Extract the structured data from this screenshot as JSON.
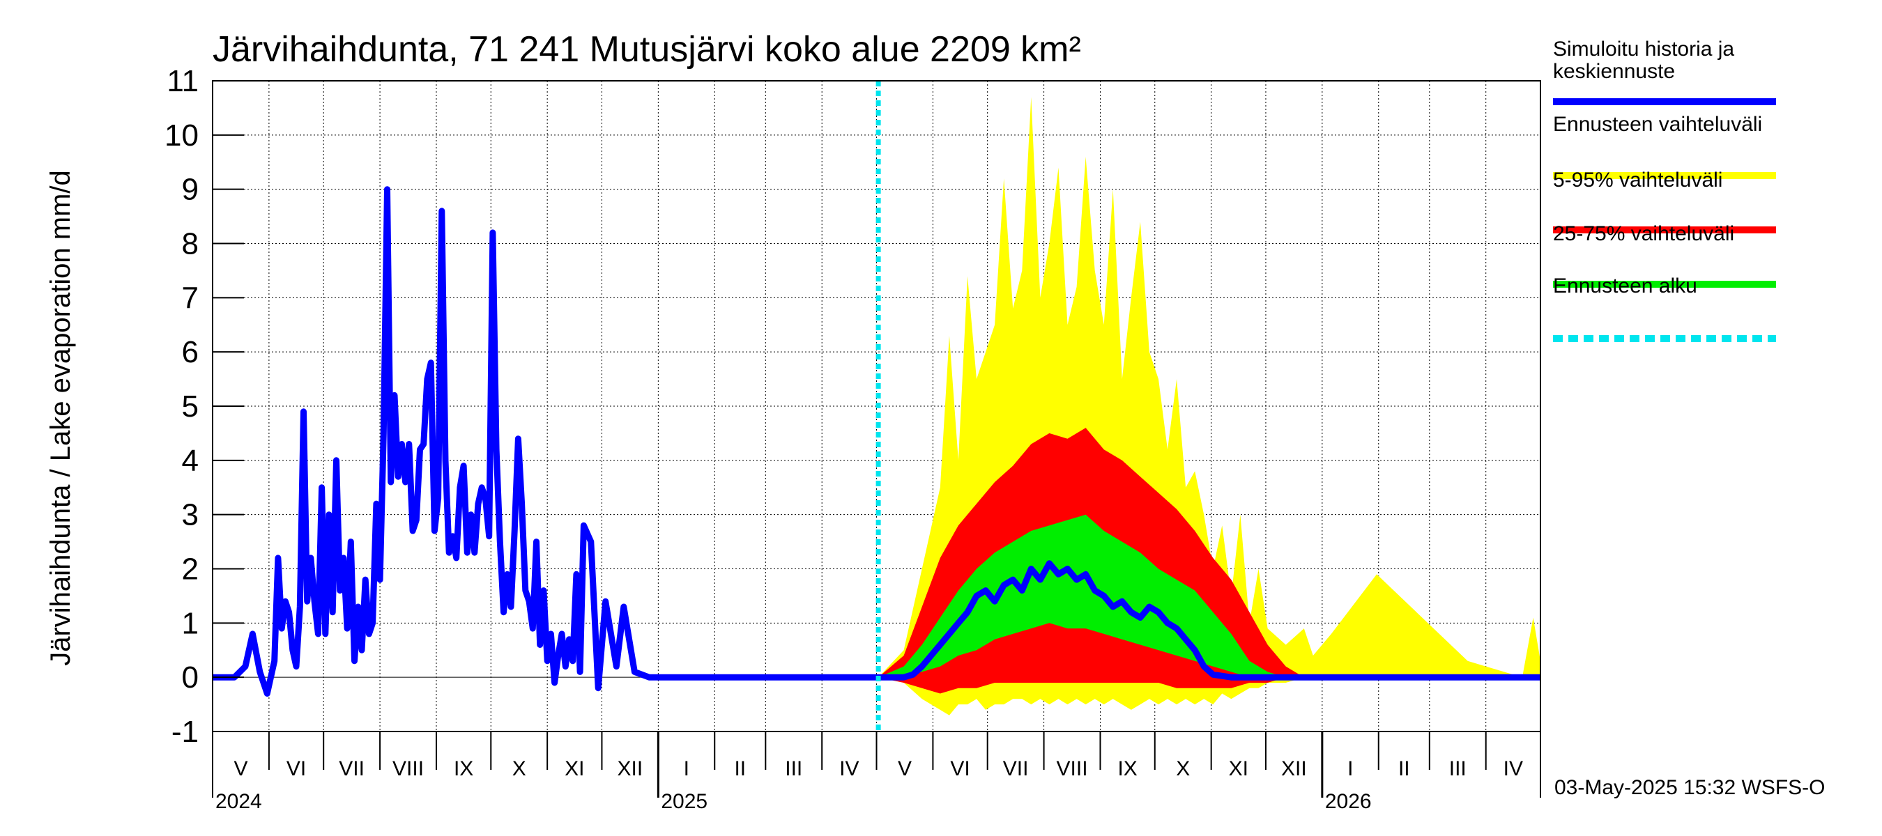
{
  "chart_data": {
    "type": "area",
    "title": "Järvihaihdunta, 71 241 Mutusjärvi koko alue 2209 km²",
    "ylabel": "Järvihaihdunta / Lake evaporation   mm/d",
    "ylim": [
      -1,
      11
    ],
    "yticks": [
      "-1",
      "0",
      "1",
      "2",
      "3",
      "4",
      "5",
      "6",
      "7",
      "8",
      "9",
      "10",
      "11"
    ],
    "grid": true,
    "x_months": [
      "V",
      "VI",
      "VII",
      "VIII",
      "IX",
      "X",
      "XI",
      "XII",
      "I",
      "II",
      "III",
      "IV",
      "V",
      "VI",
      "VII",
      "VIII",
      "IX",
      "X",
      "XI",
      "XII",
      "I",
      "II",
      "III",
      "IV"
    ],
    "x_years": [
      "2024",
      "2025",
      "2026"
    ],
    "x_range_days": [
      0,
      730
    ],
    "forecast_start_day": 366,
    "legend": {
      "placement": "right",
      "entries": [
        {
          "label": "Simuloitu historia ja keskiennuste",
          "color": "#0000ff"
        },
        {
          "label": "Ennusteen vaihteluväli",
          "color": "#ffff00"
        },
        {
          "label": "5-95% vaihteluväli",
          "color": "#ff0000"
        },
        {
          "label": "25-75% vaihteluväli",
          "color": "#00ee00"
        },
        {
          "label": "Ennusteen alku",
          "color": "#00e5ee",
          "dashed": true
        }
      ]
    },
    "series": [
      {
        "name": "Simuloitu historia ja keskiennuste",
        "color": "#0000ff",
        "x": [
          0,
          12,
          18,
          22,
          26,
          30,
          34,
          36,
          38,
          40,
          42,
          44,
          46,
          48,
          50,
          52,
          54,
          56,
          58,
          60,
          62,
          64,
          66,
          68,
          70,
          72,
          74,
          76,
          78,
          80,
          82,
          84,
          86,
          88,
          90,
          92,
          94,
          96,
          98,
          100,
          102,
          104,
          106,
          108,
          110,
          112,
          114,
          116,
          118,
          120,
          122,
          124,
          126,
          128,
          130,
          132,
          134,
          136,
          138,
          140,
          142,
          144,
          146,
          148,
          150,
          152,
          154,
          156,
          158,
          160,
          162,
          164,
          166,
          168,
          170,
          172,
          174,
          176,
          178,
          180,
          182,
          184,
          186,
          188,
          190,
          192,
          194,
          196,
          198,
          200,
          202,
          204,
          208,
          212,
          216,
          222,
          226,
          232,
          240,
          366,
          380,
          385,
          390,
          395,
          400,
          405,
          410,
          415,
          420,
          425,
          430,
          435,
          440,
          445,
          450,
          455,
          460,
          465,
          470,
          475,
          480,
          485,
          490,
          495,
          500,
          505,
          510,
          515,
          520,
          525,
          530,
          535,
          540,
          545,
          550,
          560,
          570,
          580,
          600,
          650,
          700,
          730
        ],
        "y": [
          0,
          0,
          0.2,
          0.8,
          0.1,
          -0.3,
          0.3,
          2.2,
          0.9,
          1.4,
          1.2,
          0.5,
          0.2,
          1.3,
          4.9,
          1.4,
          2.2,
          1.4,
          0.8,
          3.5,
          0.8,
          3.0,
          1.2,
          4.0,
          1.6,
          2.2,
          0.9,
          2.5,
          0.3,
          1.3,
          0.5,
          1.8,
          0.8,
          1.0,
          3.2,
          1.8,
          4.5,
          9.0,
          3.6,
          5.2,
          3.7,
          4.3,
          3.6,
          4.3,
          2.7,
          2.9,
          4.2,
          4.3,
          5.5,
          5.8,
          2.7,
          3.3,
          8.6,
          4.0,
          2.3,
          2.6,
          2.2,
          3.5,
          3.9,
          2.3,
          3.0,
          2.3,
          3.2,
          3.5,
          3.3,
          2.6,
          8.2,
          4.2,
          2.5,
          1.2,
          1.9,
          1.3,
          2.7,
          4.4,
          3.2,
          1.6,
          1.4,
          0.9,
          2.5,
          0.6,
          1.6,
          0.3,
          0.8,
          -0.1,
          0.4,
          0.8,
          0.2,
          0.7,
          0.3,
          1.9,
          0.1,
          2.8,
          2.5,
          -0.2,
          1.4,
          0.2,
          1.3,
          0.1,
          0,
          0,
          0,
          0.05,
          0.2,
          0.4,
          0.6,
          0.8,
          1.0,
          1.2,
          1.5,
          1.6,
          1.4,
          1.7,
          1.8,
          1.6,
          2.0,
          1.8,
          2.1,
          1.9,
          2.0,
          1.8,
          1.9,
          1.6,
          1.5,
          1.3,
          1.4,
          1.2,
          1.1,
          1.3,
          1.2,
          1.0,
          0.9,
          0.7,
          0.5,
          0.2,
          0.05,
          0,
          0,
          0,
          0,
          0,
          0,
          0
        ]
      },
      {
        "name": "Ennusteen vaihteluväli",
        "color": "#ffff00",
        "x": [
          366,
          380,
          390,
          400,
          405,
          410,
          415,
          420,
          425,
          430,
          435,
          440,
          445,
          450,
          455,
          460,
          465,
          470,
          475,
          480,
          485,
          490,
          495,
          500,
          505,
          510,
          515,
          520,
          525,
          530,
          535,
          540,
          545,
          550,
          555,
          560,
          565,
          570,
          575,
          580,
          590,
          600,
          605,
          615,
          640,
          690,
          700,
          720,
          726,
          730
        ],
        "upper": [
          0,
          0.5,
          2.0,
          3.5,
          6.3,
          4.0,
          7.4,
          5.5,
          6.0,
          6.5,
          9.2,
          6.8,
          7.5,
          10.7,
          7.0,
          8.0,
          9.4,
          6.5,
          7.2,
          9.6,
          7.5,
          6.5,
          9.0,
          5.5,
          7.0,
          8.4,
          6.0,
          5.5,
          4.2,
          5.5,
          3.5,
          3.8,
          3.0,
          2.0,
          2.8,
          1.5,
          3.0,
          1.0,
          2.0,
          0.9,
          0.6,
          0.9,
          0.4,
          0.8,
          1.9,
          0.3,
          0.2,
          0.0,
          1.1,
          0.3
        ],
        "lower": [
          0,
          -0.1,
          -0.4,
          -0.6,
          -0.7,
          -0.5,
          -0.5,
          -0.4,
          -0.6,
          -0.5,
          -0.5,
          -0.4,
          -0.4,
          -0.5,
          -0.4,
          -0.5,
          -0.4,
          -0.5,
          -0.4,
          -0.5,
          -0.4,
          -0.5,
          -0.4,
          -0.5,
          -0.6,
          -0.5,
          -0.4,
          -0.5,
          -0.4,
          -0.5,
          -0.4,
          -0.5,
          -0.4,
          -0.5,
          -0.3,
          -0.4,
          -0.3,
          -0.2,
          -0.2,
          -0.1,
          -0.1,
          0,
          0,
          0,
          0,
          0,
          0,
          0,
          0,
          0
        ]
      },
      {
        "name": "5-95% vaihteluväli",
        "color": "#ff0000",
        "x": [
          366,
          380,
          390,
          400,
          410,
          420,
          430,
          440,
          450,
          460,
          470,
          480,
          490,
          500,
          510,
          520,
          530,
          540,
          550,
          560,
          570,
          580,
          590,
          600
        ],
        "upper": [
          0,
          0.4,
          1.3,
          2.2,
          2.8,
          3.2,
          3.6,
          3.9,
          4.3,
          4.5,
          4.4,
          4.6,
          4.2,
          4.0,
          3.7,
          3.4,
          3.1,
          2.7,
          2.2,
          1.8,
          1.2,
          0.6,
          0.2,
          0
        ],
        "lower": [
          0,
          -0.1,
          -0.2,
          -0.3,
          -0.2,
          -0.2,
          -0.1,
          -0.1,
          -0.1,
          -0.1,
          -0.1,
          -0.1,
          -0.1,
          -0.1,
          -0.1,
          -0.1,
          -0.2,
          -0.2,
          -0.2,
          -0.2,
          -0.1,
          -0.1,
          0,
          0
        ]
      },
      {
        "name": "25-75% vaihteluväli",
        "color": "#00ee00",
        "x": [
          366,
          380,
          390,
          400,
          410,
          420,
          430,
          440,
          450,
          460,
          470,
          480,
          490,
          500,
          510,
          520,
          530,
          540,
          550,
          560,
          570,
          580,
          590
        ],
        "upper": [
          0,
          0.2,
          0.6,
          1.1,
          1.6,
          2.0,
          2.3,
          2.5,
          2.7,
          2.8,
          2.9,
          3.0,
          2.7,
          2.5,
          2.3,
          2.0,
          1.8,
          1.6,
          1.2,
          0.8,
          0.3,
          0.1,
          0
        ],
        "lower": [
          0,
          0,
          0.1,
          0.2,
          0.4,
          0.5,
          0.7,
          0.8,
          0.9,
          1.0,
          0.9,
          0.9,
          0.8,
          0.7,
          0.6,
          0.5,
          0.4,
          0.3,
          0.2,
          0.1,
          0,
          0,
          0
        ]
      }
    ]
  },
  "footer": "03-May-2025 15:32 WSFS-O",
  "colors": {
    "axis": "#000000",
    "grid": "#000000",
    "background": "#ffffff"
  }
}
